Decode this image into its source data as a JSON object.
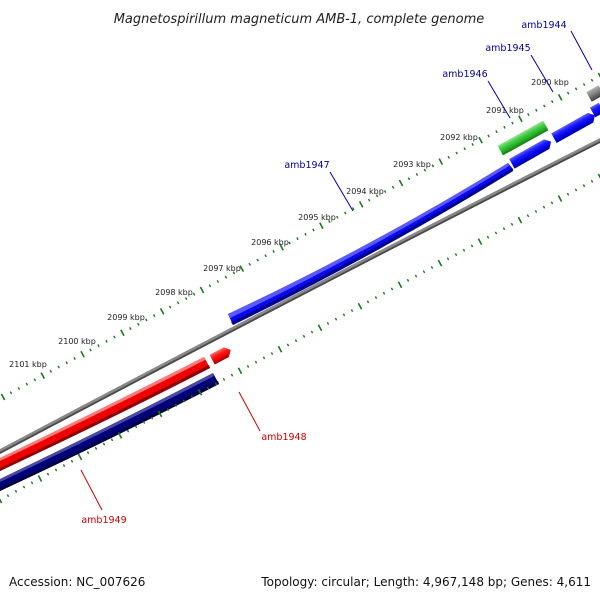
{
  "title": "Magnetospirillum magneticum AMB-1, complete genome",
  "accession": "Accession: NC_007626",
  "topology": "Topology: circular; Length: 4,967,148 bp; Genes: 4,611",
  "colors": {
    "plus_strand": "#0000ee",
    "minus_strand": "#ee0000",
    "cds_dark": "#000080",
    "rna": "#33bb33",
    "backbone": "#808080",
    "ticks": "#1a7a1a",
    "plus_label": "#000099",
    "minus_label": "#cc0000"
  },
  "kbp_labels": [
    "2090 kbp",
    "2091 kbp",
    "2092 kbp",
    "2093 kbp",
    "2094 kbp",
    "2095 kbp",
    "2096 kbp",
    "2097 kbp",
    "2098 kbp",
    "2099 kbp",
    "2100 kbp",
    "2101 kbp"
  ],
  "gene_labels": [
    "amb1944",
    "amb1945",
    "amb1946",
    "amb1947",
    "amb1948",
    "amb1949"
  ]
}
